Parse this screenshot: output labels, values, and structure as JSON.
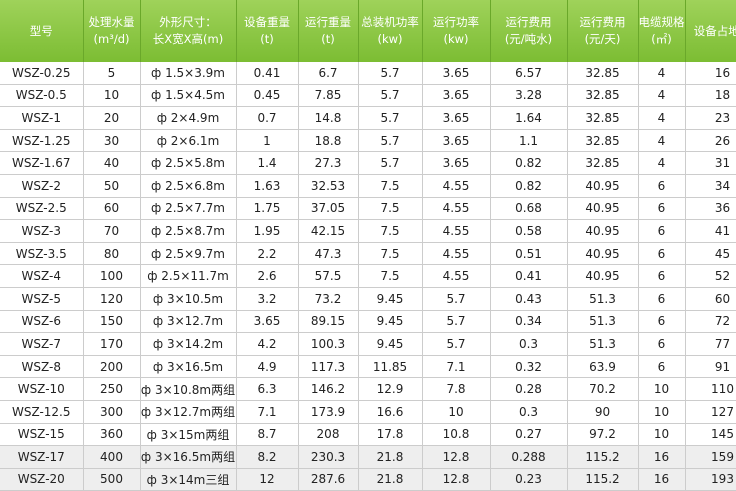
{
  "table": {
    "header": [
      [
        "型号"
      ],
      [
        "处理水量",
        "(m³/d)"
      ],
      [
        "外形尺寸：",
        "长X宽X高(m)"
      ],
      [
        "设备重量",
        "(t)"
      ],
      [
        "运行重量",
        "(t)"
      ],
      [
        "总装机功率",
        "(kw)"
      ],
      [
        "运行功率",
        "(kw)"
      ],
      [
        "运行费用",
        "(元/吨水)"
      ],
      [
        "运行费用",
        "(元/天)"
      ],
      [
        "电缆规格",
        "(㎡)"
      ],
      [
        "设备占地面"
      ]
    ],
    "rows": [
      [
        "WSZ-0.25",
        "5",
        "ф 1.5×3.9m",
        "0.41",
        "6.7",
        "5.7",
        "3.65",
        "6.57",
        "32.85",
        "4",
        "16"
      ],
      [
        "WSZ-0.5",
        "10",
        "ф 1.5×4.5m",
        "0.45",
        "7.85",
        "5.7",
        "3.65",
        "3.28",
        "32.85",
        "4",
        "18"
      ],
      [
        "WSZ-1",
        "20",
        "ф 2×4.9m",
        "0.7",
        "14.8",
        "5.7",
        "3.65",
        "1.64",
        "32.85",
        "4",
        "23"
      ],
      [
        "WSZ-1.25",
        "30",
        "ф 2×6.1m",
        "1",
        "18.8",
        "5.7",
        "3.65",
        "1.1",
        "32.85",
        "4",
        "26"
      ],
      [
        "WSZ-1.67",
        "40",
        "ф 2.5×5.8m",
        "1.4",
        "27.3",
        "5.7",
        "3.65",
        "0.82",
        "32.85",
        "4",
        "31"
      ],
      [
        "WSZ-2",
        "50",
        "ф 2.5×6.8m",
        "1.63",
        "32.53",
        "7.5",
        "4.55",
        "0.82",
        "40.95",
        "6",
        "34"
      ],
      [
        "WSZ-2.5",
        "60",
        "ф 2.5×7.7m",
        "1.75",
        "37.05",
        "7.5",
        "4.55",
        "0.68",
        "40.95",
        "6",
        "36"
      ],
      [
        "WSZ-3",
        "70",
        "ф 2.5×8.7m",
        "1.95",
        "42.15",
        "7.5",
        "4.55",
        "0.58",
        "40.95",
        "6",
        "41"
      ],
      [
        "WSZ-3.5",
        "80",
        "ф 2.5×9.7m",
        "2.2",
        "47.3",
        "7.5",
        "4.55",
        "0.51",
        "40.95",
        "6",
        "45"
      ],
      [
        "WSZ-4",
        "100",
        "ф 2.5×11.7m",
        "2.6",
        "57.5",
        "7.5",
        "4.55",
        "0.41",
        "40.95",
        "6",
        "52"
      ],
      [
        "WSZ-5",
        "120",
        "ф 3×10.5m",
        "3.2",
        "73.2",
        "9.45",
        "5.7",
        "0.43",
        "51.3",
        "6",
        "60"
      ],
      [
        "WSZ-6",
        "150",
        "ф 3×12.7m",
        "3.65",
        "89.15",
        "9.45",
        "5.7",
        "0.34",
        "51.3",
        "6",
        "72"
      ],
      [
        "WSZ-7",
        "170",
        "ф 3×14.2m",
        "4.2",
        "100.3",
        "9.45",
        "5.7",
        "0.3",
        "51.3",
        "6",
        "77"
      ],
      [
        "WSZ-8",
        "200",
        "ф 3×16.5m",
        "4.9",
        "117.3",
        "11.85",
        "7.1",
        "0.32",
        "63.9",
        "6",
        "91"
      ],
      [
        "WSZ-10",
        "250",
        "ф 3×10.8m两组",
        "6.3",
        "146.2",
        "12.9",
        "7.8",
        "0.28",
        "70.2",
        "10",
        "110"
      ],
      [
        "WSZ-12.5",
        "300",
        "ф 3×12.7m两组",
        "7.1",
        "173.9",
        "16.6",
        "10",
        "0.3",
        "90",
        "10",
        "127"
      ],
      [
        "WSZ-15",
        "360",
        "ф 3×15m两组",
        "8.7",
        "208",
        "17.8",
        "10.8",
        "0.27",
        "97.2",
        "10",
        "145"
      ],
      [
        "WSZ-17",
        "400",
        "ф 3×16.5m两组",
        "8.2",
        "230.3",
        "21.8",
        "12.8",
        "0.288",
        "115.2",
        "16",
        "159"
      ],
      [
        "WSZ-20",
        "500",
        "ф 3×14m三组",
        "12",
        "287.6",
        "21.8",
        "12.8",
        "0.23",
        "115.2",
        "16",
        "193"
      ]
    ]
  }
}
